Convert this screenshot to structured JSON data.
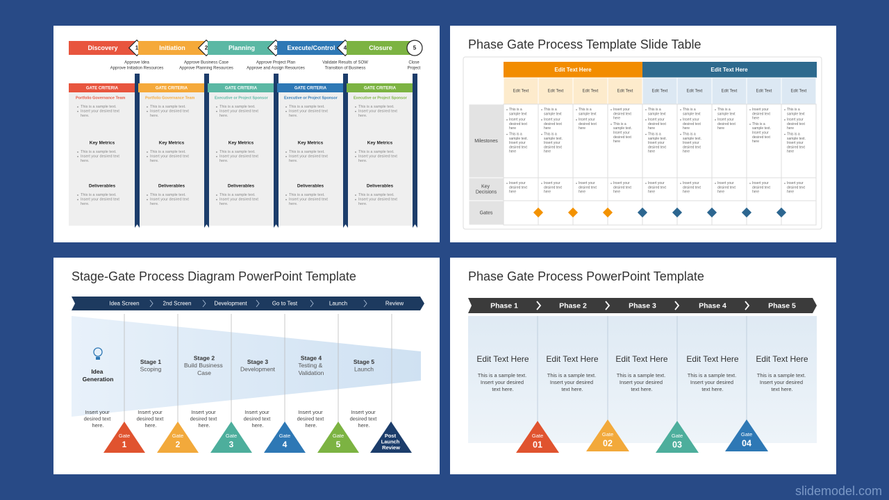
{
  "watermark": "slidemodel.com",
  "slides": [
    {
      "phases": [
        {
          "name": "Discovery",
          "gate": "1",
          "approval": [
            "Approve Idea",
            "Approve Initiation Resources"
          ]
        },
        {
          "name": "Initiation",
          "gate": "2",
          "approval": [
            "Approve Business Case",
            "Approve Planning Resources"
          ]
        },
        {
          "name": "Planning",
          "gate": "3",
          "approval": [
            "Approve Project Plan",
            "Approve and Assign Resources"
          ]
        },
        {
          "name": "Execute/Control",
          "gate": "4",
          "approval": [
            "Validate Results of SOW",
            "Transition of Business"
          ]
        },
        {
          "name": "Closure",
          "gate": "5",
          "approval": [
            "Close",
            "Project"
          ]
        }
      ],
      "columns": [
        {
          "header": "GATE CRITERIA",
          "sections": [
            {
              "title": "Portfolio Governance Team",
              "bullets": [
                "This is a sample text.",
                "Insert your desired text here."
              ]
            },
            {
              "title": "Key Metrics",
              "bullets": [
                "This is a sample text.",
                "Insert your desired text here."
              ]
            },
            {
              "title": "Deliverables",
              "bullets": [
                "This is a sample text.",
                "Insert your desired text here."
              ]
            }
          ]
        },
        {
          "header": "GATE CRITERIA",
          "sections": [
            {
              "title": "Portfolio Governance Team",
              "bullets": [
                "This is a sample text.",
                "Insert your desired text here."
              ]
            },
            {
              "title": "Key Metrics",
              "bullets": [
                "This is a sample text.",
                "Insert your desired text here."
              ]
            },
            {
              "title": "Deliverables",
              "bullets": [
                "This is a sample text.",
                "Insert your desired text here."
              ]
            }
          ]
        },
        {
          "header": "GATE CRITERIA",
          "sections": [
            {
              "title": "Executive or Project Sponsor",
              "bullets": [
                "This is a sample text.",
                "Insert your desired text here."
              ]
            },
            {
              "title": "Key Metrics",
              "bullets": [
                "This is a sample text.",
                "Insert your desired text here."
              ]
            },
            {
              "title": "Deliverables",
              "bullets": [
                "This is a sample text.",
                "Insert your desired text here."
              ]
            }
          ]
        },
        {
          "header": "GATE CRITERIA",
          "sections": [
            {
              "title": "Executive or Project Sponsor",
              "bullets": [
                "This is a sample text.",
                "Insert your desired text here."
              ]
            },
            {
              "title": "Key Metrics",
              "bullets": [
                "This is a sample text.",
                "Insert your desired text here."
              ]
            },
            {
              "title": "Deliverables",
              "bullets": [
                "This is a sample text.",
                "Insert your desired text here."
              ]
            }
          ]
        },
        {
          "header": "GATE CRITERIA",
          "sections": [
            {
              "title": "Executive or Project Sponsor",
              "bullets": [
                "This is a sample text.",
                "Insert your desired text here."
              ]
            },
            {
              "title": "Key Metrics",
              "bullets": [
                "This is a sample text.",
                "Insert your desired text here."
              ]
            },
            {
              "title": "Deliverables",
              "bullets": [
                "This is a sample text.",
                "Insert your desired text here."
              ]
            }
          ]
        }
      ]
    },
    {
      "title": "Phase Gate Process Template Slide Table",
      "groups": [
        "Edit Text Here",
        "Edit Text Here"
      ],
      "columns": [
        "Edit Text",
        "Edit Text",
        "Edit Text",
        "Edit Text",
        "Edit Text",
        "Edit Text",
        "Edit Text",
        "Edit Text",
        "Edit Text"
      ],
      "rows": [
        "Milestones",
        "Key Decisions",
        "Gates"
      ],
      "milestones": [
        [
          "This is a sample text",
          "Insert your desired text here",
          "This is a sample text. Insert your desired text here"
        ],
        [
          "This is a sample text",
          "Insert your desired text here",
          "This is a sample text. Insert your desired text here"
        ],
        [
          "This is a sample text",
          "Insert your desired text here"
        ],
        [
          "Insert your desired text here",
          "This is a sample text. Insert your desired text here"
        ],
        [
          "This is a sample text",
          "Insert your desired text here",
          "This is a sample text. Insert your desired text here"
        ],
        [
          "This is a sample text",
          "Insert your desired text here",
          "This is a sample text. Insert your desired text here"
        ],
        [
          "This is a sample text",
          "Insert your desired text here"
        ],
        [
          "Insert your desired text here",
          "This is a sample text. Insert your desired text here"
        ],
        [
          "This is a sample text",
          "Insert your desired text here",
          "This is a sample text. Insert your desired text here"
        ]
      ],
      "decisions": [
        "Insert your desired text here",
        "Insert your desired text here",
        "Insert your desired text here",
        "Insert your desired text here",
        "Insert your desired text here",
        "Insert your desired text here",
        "Insert your desired text here",
        "Insert your desired text here",
        "Insert your desired text here"
      ]
    },
    {
      "title": "Stage-Gate Process Diagram  PowerPoint Template",
      "steps": [
        "Idea Screen",
        "2nd Screen",
        "Development",
        "Go to Test",
        "Launch",
        "Review"
      ],
      "stages": [
        {
          "title": "Idea Generation"
        },
        {
          "title": "Stage 1",
          "text": "Scoping"
        },
        {
          "title": "Stage 2",
          "text": "Build Business Case"
        },
        {
          "title": "Stage 3",
          "text": "Development"
        },
        {
          "title": "Stage 4",
          "text": "Testing & Validation"
        },
        {
          "title": "Stage 5",
          "text": "Launch"
        }
      ],
      "notes": [
        "Insert your desired text here.",
        "Insert your desired text here.",
        "Insert your desired text here.",
        "Insert your desired text here.",
        "Insert your desired text here.",
        "Insert your desired text here."
      ],
      "gates": [
        {
          "label": "Gate",
          "number": "1"
        },
        {
          "label": "Gate",
          "number": "2"
        },
        {
          "label": "Gate",
          "number": "3"
        },
        {
          "label": "Gate",
          "number": "4"
        },
        {
          "label": "Gate",
          "number": "5"
        },
        {
          "label": "Post Launch Review"
        }
      ]
    },
    {
      "title": "Phase Gate Process PowerPoint Template",
      "phases": [
        "Phase 1",
        "Phase 2",
        "Phase 3",
        "Phase 4",
        "Phase 5"
      ],
      "columns": [
        {
          "heading": "Edit Text Here",
          "text": "This is a sample text. Insert your desired text here."
        },
        {
          "heading": "Edit Text Here",
          "text": "This is a sample text. Insert your desired text here."
        },
        {
          "heading": "Edit Text Here",
          "text": "This is a sample text. Insert your desired text here."
        },
        {
          "heading": "Edit Text Here",
          "text": "This is a sample text. Insert your desired text here."
        },
        {
          "heading": "Edit Text Here",
          "text": "This is a sample text. Insert your desired text here."
        }
      ],
      "gates": [
        {
          "label": "Gate",
          "number": "01"
        },
        {
          "label": "Gate",
          "number": "02"
        },
        {
          "label": "Gate",
          "number": "03"
        },
        {
          "label": "Gate",
          "number": "04"
        }
      ]
    }
  ]
}
